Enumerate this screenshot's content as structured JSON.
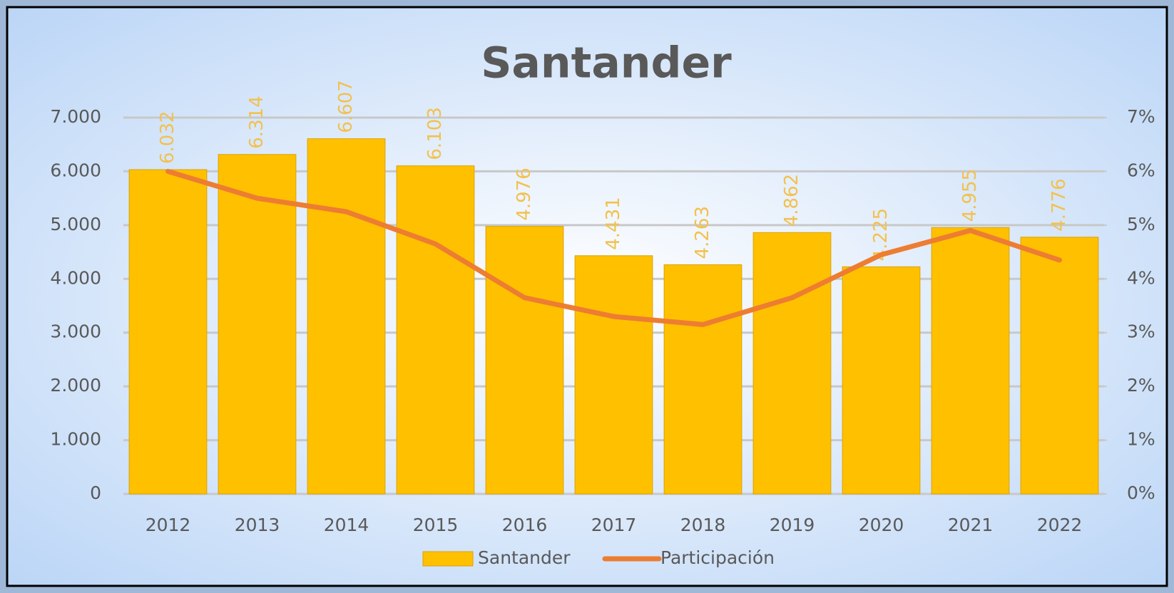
{
  "chart_data": {
    "type": "bar",
    "title": "Santander",
    "categories": [
      "2012",
      "2013",
      "2014",
      "2015",
      "2016",
      "2017",
      "2018",
      "2019",
      "2020",
      "2021",
      "2022"
    ],
    "series": [
      {
        "name": "Santander",
        "type": "bar",
        "color": "#ffc000",
        "values": [
          6032,
          6314,
          6607,
          6103,
          4976,
          4431,
          4263,
          4862,
          4225,
          4955,
          4776
        ],
        "value_labels": [
          "6.032",
          "6.314",
          "6.607",
          "6.103",
          "4.976",
          "4.431",
          "4.263",
          "4.862",
          "4.225",
          "4.955",
          "4.776"
        ]
      },
      {
        "name": "Participación",
        "type": "line",
        "color": "#ed7d31",
        "axis": "y2",
        "values": [
          6.0,
          5.5,
          5.25,
          4.65,
          3.65,
          3.3,
          3.15,
          3.65,
          4.45,
          4.9,
          4.35
        ]
      }
    ],
    "ylim": [
      0,
      7000
    ],
    "yticks": [
      0,
      {
        "value": 1000,
        "label": "1.000"
      },
      {
        "value": 2000,
        "label": "2.000"
      },
      {
        "value": 3000,
        "label": "3.000"
      },
      {
        "value": 4000,
        "label": "4.000"
      },
      {
        "value": 5000,
        "label": "5.000"
      },
      {
        "value": 6000,
        "label": "6.000"
      },
      {
        "value": 7000,
        "label": "7.000"
      }
    ],
    "y2lim": [
      0,
      7
    ],
    "y2ticks": [
      {
        "value": 0,
        "label": "0%"
      },
      {
        "value": 1,
        "label": "1%"
      },
      {
        "value": 2,
        "label": "2%"
      },
      {
        "value": 3,
        "label": "3%"
      },
      {
        "value": 4,
        "label": "4%"
      },
      {
        "value": 5,
        "label": "5%"
      },
      {
        "value": 6,
        "label": "6%"
      },
      {
        "value": 7,
        "label": "7%"
      }
    ],
    "grid": true,
    "legend": "bottom"
  }
}
